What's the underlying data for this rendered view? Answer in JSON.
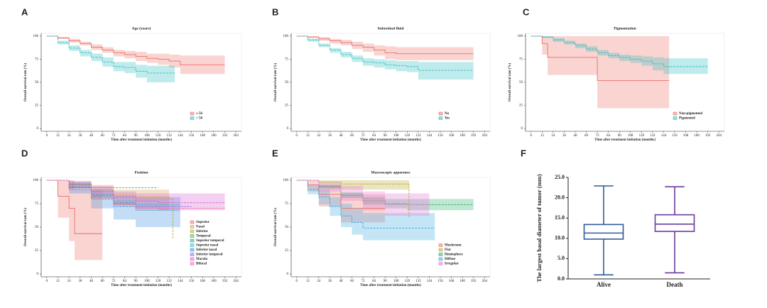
{
  "chart_data": [
    {
      "type": "km",
      "panel_label": "A",
      "title": "Age (years)",
      "xlabel": "Time after treatment initiation (months)",
      "ylabel": "Overall survival rate (%)",
      "xlim": [
        -6,
        210
      ],
      "ylim": [
        -3,
        103
      ],
      "xticks": [
        0,
        12,
        24,
        36,
        48,
        60,
        72,
        84,
        96,
        108,
        120,
        132,
        144,
        156,
        168,
        180,
        192,
        204
      ],
      "yticks": [
        0,
        25,
        50,
        75,
        100
      ],
      "legend": "lower right",
      "series": [
        {
          "name": "≤ 56",
          "color": "#ec6f68",
          "linestyle": "solid",
          "x": [
            0,
            12,
            24,
            36,
            48,
            60,
            72,
            84,
            96,
            108,
            120,
            132,
            144,
            192
          ],
          "values": [
            100,
            98,
            95,
            92,
            88,
            85,
            82,
            80,
            78,
            76,
            75,
            73,
            69,
            69
          ],
          "ci_lower": [
            100,
            97,
            93,
            90,
            85,
            82,
            78,
            76,
            73,
            71,
            69,
            66,
            59,
            59
          ],
          "ci_upper": [
            100,
            99,
            97,
            94,
            91,
            88,
            85,
            84,
            83,
            81,
            81,
            80,
            79,
            79
          ]
        },
        {
          "name": "> 56",
          "color": "#2fbcc0",
          "linestyle": "dashed",
          "x": [
            0,
            12,
            24,
            36,
            48,
            60,
            72,
            84,
            96,
            108,
            120,
            132,
            138
          ],
          "values": [
            100,
            93,
            87,
            82,
            77,
            72,
            67,
            66,
            62,
            60,
            60,
            60,
            60
          ],
          "ci_lower": [
            100,
            91,
            84,
            78,
            73,
            67,
            62,
            60,
            55,
            50,
            50,
            50,
            50
          ],
          "ci_upper": [
            100,
            95,
            90,
            85,
            81,
            77,
            72,
            72,
            69,
            68,
            68,
            68,
            68
          ]
        }
      ]
    },
    {
      "type": "km",
      "panel_label": "B",
      "title": "Subretinal fluid",
      "xlabel": "Time after treatment initiation (months)",
      "ylabel": "Overall survival rate (%)",
      "xlim": [
        -6,
        210
      ],
      "ylim": [
        -3,
        103
      ],
      "xticks": [
        0,
        12,
        24,
        36,
        48,
        60,
        72,
        84,
        96,
        108,
        120,
        132,
        144,
        156,
        168,
        180,
        192,
        204
      ],
      "yticks": [
        0,
        25,
        50,
        75,
        100
      ],
      "legend": "lower right",
      "series": [
        {
          "name": "No",
          "color": "#ec6f68",
          "linestyle": "solid",
          "x": [
            0,
            12,
            24,
            36,
            48,
            60,
            72,
            84,
            96,
            108,
            120,
            144,
            192
          ],
          "values": [
            100,
            99,
            97,
            95,
            93,
            90,
            88,
            85,
            82,
            81,
            81,
            81,
            81
          ],
          "ci_lower": [
            100,
            98,
            95,
            92,
            90,
            86,
            83,
            79,
            75,
            74,
            74,
            74,
            74
          ],
          "ci_upper": [
            100,
            100,
            99,
            97,
            96,
            94,
            92,
            90,
            89,
            88,
            88,
            88,
            88
          ]
        },
        {
          "name": "Yes",
          "color": "#2fbcc0",
          "linestyle": "dashed",
          "x": [
            0,
            12,
            24,
            36,
            48,
            60,
            72,
            84,
            96,
            108,
            120,
            132,
            192
          ],
          "values": [
            100,
            96,
            90,
            85,
            80,
            76,
            72,
            71,
            69,
            68,
            67,
            63,
            63
          ],
          "ci_lower": [
            100,
            94,
            88,
            82,
            77,
            72,
            68,
            66,
            64,
            62,
            61,
            53,
            53
          ],
          "ci_upper": [
            100,
            97,
            92,
            87,
            83,
            79,
            76,
            75,
            74,
            73,
            73,
            72,
            72
          ]
        }
      ]
    },
    {
      "type": "km",
      "panel_label": "C",
      "title": "Pigmentation",
      "xlabel": "Time after treatment initiation (months)",
      "ylabel": "Overall survival rate (%)",
      "xlim": [
        -6,
        210
      ],
      "ylim": [
        -3,
        103
      ],
      "xticks": [
        0,
        12,
        24,
        36,
        48,
        60,
        72,
        84,
        96,
        108,
        120,
        132,
        144,
        156,
        168,
        180,
        192,
        204
      ],
      "yticks": [
        0,
        25,
        50,
        75,
        100
      ],
      "legend": "lower right",
      "series": [
        {
          "name": "Non-pigmented",
          "color": "#ec6f68",
          "linestyle": "solid",
          "x": [
            0,
            6,
            12,
            18,
            72,
            150
          ],
          "values": [
            100,
            100,
            92,
            77,
            52,
            52
          ],
          "ci_lower": [
            100,
            100,
            80,
            58,
            22,
            22
          ],
          "ci_upper": [
            100,
            100,
            100,
            100,
            100,
            100
          ]
        },
        {
          "name": "Pigmented",
          "color": "#2fbcc0",
          "linestyle": "dashed",
          "x": [
            0,
            12,
            24,
            36,
            48,
            60,
            72,
            84,
            96,
            108,
            120,
            132,
            144,
            192
          ],
          "values": [
            100,
            99,
            96,
            93,
            90,
            86,
            82,
            79,
            77,
            75,
            73,
            70,
            67,
            67
          ],
          "ci_lower": [
            100,
            98,
            94,
            91,
            87,
            83,
            79,
            76,
            73,
            71,
            68,
            63,
            59,
            59
          ],
          "ci_upper": [
            100,
            100,
            98,
            95,
            92,
            89,
            85,
            82,
            80,
            79,
            78,
            77,
            76,
            76
          ]
        }
      ]
    },
    {
      "type": "km",
      "panel_label": "D",
      "title": "Position",
      "xlabel": "Time after treatment initiation (months)",
      "ylabel": "Overall survival rate (%)",
      "xlim": [
        -6,
        210
      ],
      "ylim": [
        -3,
        103
      ],
      "xticks": [
        0,
        12,
        24,
        36,
        48,
        60,
        72,
        84,
        96,
        108,
        120,
        132,
        144,
        156,
        168,
        180,
        192,
        204
      ],
      "yticks": [
        0,
        25,
        50,
        75,
        100
      ],
      "legend": "lower right",
      "series": [
        {
          "name": "Superior",
          "color": "#ec6f68",
          "linestyle": "solid",
          "x": [
            0,
            12,
            24,
            30,
            60
          ],
          "values": [
            100,
            83,
            70,
            43,
            43
          ],
          "ci_lower": [
            100,
            60,
            35,
            15,
            15
          ],
          "ci_upper": [
            100,
            100,
            100,
            90,
            90
          ]
        },
        {
          "name": "Nasal",
          "color": "#dc9a5a",
          "linestyle": "dashed",
          "x": [
            0,
            24,
            48,
            72,
            96,
            120,
            132
          ],
          "values": [
            100,
            95,
            88,
            82,
            80,
            80,
            80
          ],
          "ci_lower": [
            100,
            90,
            80,
            72,
            68,
            68,
            68
          ],
          "ci_upper": [
            100,
            99,
            95,
            90,
            90,
            90,
            90
          ]
        },
        {
          "name": "Inferior",
          "color": "#b8a830",
          "linestyle": "dashed",
          "x": [
            0,
            24,
            48,
            72,
            96,
            132,
            136
          ],
          "values": [
            100,
            96,
            90,
            85,
            82,
            80,
            38
          ]
        },
        {
          "name": "Temporal",
          "color": "#4caf50",
          "linestyle": "dashed",
          "x": [
            0,
            24,
            48,
            72,
            96,
            120
          ],
          "values": [
            100,
            95,
            92,
            92,
            92,
            92
          ]
        },
        {
          "name": "Superior temporal",
          "color": "#2aa88a",
          "linestyle": "dashed",
          "x": [
            0,
            24,
            48,
            72,
            96,
            144
          ],
          "values": [
            100,
            92,
            82,
            76,
            72,
            72
          ]
        },
        {
          "name": "Superior nasal",
          "color": "#2fbcc8",
          "linestyle": "dashed",
          "x": [
            0,
            24,
            48,
            72,
            96,
            144
          ],
          "values": [
            100,
            93,
            85,
            78,
            74,
            74
          ]
        },
        {
          "name": "Inferior nasal",
          "color": "#3d8fe0",
          "linestyle": "dashed",
          "x": [
            0,
            24,
            48,
            72,
            96,
            144
          ],
          "values": [
            100,
            92,
            80,
            72,
            68,
            68
          ],
          "ci_lower": [
            100,
            86,
            70,
            58,
            50,
            50
          ],
          "ci_upper": [
            100,
            98,
            90,
            84,
            82,
            82
          ]
        },
        {
          "name": "Inferior temporal",
          "color": "#8a6fe0",
          "linestyle": "dashed",
          "x": [
            0,
            24,
            48,
            72,
            96,
            156
          ],
          "values": [
            100,
            93,
            84,
            75,
            72,
            72
          ]
        },
        {
          "name": "Macula",
          "color": "#d860d0",
          "linestyle": "dashed",
          "x": [
            0,
            24,
            48,
            72,
            96,
            120,
            192
          ],
          "values": [
            100,
            96,
            88,
            82,
            78,
            76,
            76
          ],
          "ci_lower": [
            100,
            92,
            82,
            74,
            70,
            68,
            68
          ],
          "ci_upper": [
            100,
            99,
            94,
            88,
            86,
            86,
            86
          ]
        },
        {
          "name": "Bifocal",
          "color": "#f06aa8",
          "linestyle": "dashed",
          "x": [
            0,
            24,
            48,
            72,
            96,
            192
          ],
          "values": [
            100,
            90,
            80,
            74,
            70,
            70
          ]
        }
      ]
    },
    {
      "type": "km",
      "panel_label": "E",
      "title": "Macroscopic apperence",
      "xlabel": "Time after treatment initiation (months)",
      "ylabel": "Overall survival rate (%)",
      "xlim": [
        -6,
        210
      ],
      "ylim": [
        -3,
        103
      ],
      "xticks": [
        0,
        12,
        24,
        36,
        48,
        60,
        72,
        84,
        96,
        108,
        120,
        132,
        144,
        156,
        168,
        180,
        192,
        204
      ],
      "yticks": [
        0,
        25,
        50,
        75,
        100
      ],
      "legend": "lower right",
      "series": [
        {
          "name": "Mushroom",
          "color": "#ec6f68",
          "linestyle": "solid",
          "x": [
            0,
            12,
            24,
            48,
            72,
            96
          ],
          "values": [
            100,
            95,
            85,
            70,
            70,
            70
          ],
          "ci_lower": [
            100,
            88,
            72,
            55,
            55,
            55
          ],
          "ci_upper": [
            100,
            100,
            95,
            85,
            85,
            85
          ]
        },
        {
          "name": "Flat",
          "color": "#b8a830",
          "linestyle": "dashed",
          "x": [
            0,
            24,
            48,
            72,
            96,
            120,
            122
          ],
          "values": [
            100,
            98,
            96,
            96,
            96,
            96,
            60
          ],
          "ci_lower": [
            100,
            95,
            90,
            90,
            90,
            90,
            55
          ],
          "ci_upper": [
            100,
            100,
            100,
            100,
            100,
            100,
            100
          ]
        },
        {
          "name": "Hemisphere",
          "color": "#2ab06a",
          "linestyle": "dashed",
          "x": [
            0,
            24,
            48,
            72,
            96,
            120,
            192
          ],
          "values": [
            100,
            93,
            84,
            78,
            75,
            74,
            74
          ],
          "ci_lower": [
            100,
            91,
            81,
            74,
            70,
            68,
            68
          ],
          "ci_upper": [
            100,
            95,
            87,
            82,
            80,
            80,
            80
          ]
        },
        {
          "name": "Diffuse",
          "color": "#3aa8e0",
          "linestyle": "dashed",
          "x": [
            0,
            12,
            24,
            36,
            48,
            60,
            72,
            150
          ],
          "values": [
            100,
            90,
            82,
            72,
            62,
            55,
            49,
            49
          ],
          "ci_lower": [
            100,
            85,
            74,
            62,
            50,
            42,
            36,
            36
          ],
          "ci_upper": [
            100,
            95,
            90,
            82,
            75,
            70,
            65,
            65
          ]
        },
        {
          "name": "Irregular",
          "color": "#e870d8",
          "linestyle": "dashed",
          "x": [
            0,
            24,
            48,
            72,
            96,
            144
          ],
          "values": [
            100,
            94,
            86,
            78,
            74,
            74
          ],
          "ci_lower": [
            100,
            88,
            78,
            68,
            62,
            62
          ],
          "ci_upper": [
            100,
            98,
            94,
            88,
            86,
            86
          ]
        }
      ]
    },
    {
      "type": "box",
      "panel_label": "F",
      "ylabel": "The largest basal diameter of tumor (mm)",
      "ylim": [
        0,
        25
      ],
      "yticks": [
        {
          "value": 0,
          "label": "0.0"
        },
        {
          "value": 5,
          "label": "5.0"
        },
        {
          "value": 10,
          "label": "10.0"
        },
        {
          "value": 15,
          "label": "15.0"
        },
        {
          "value": 20,
          "label": "20.0"
        },
        {
          "value": 25,
          "label": "25.0"
        }
      ],
      "categories": [
        "Alive",
        "Death"
      ],
      "colors": [
        "#2d5b9b",
        "#6b3a9e"
      ],
      "min": [
        1.0,
        1.5
      ],
      "q1": [
        9.8,
        11.7
      ],
      "median": [
        11.3,
        13.5
      ],
      "q3": [
        13.4,
        15.8
      ],
      "max": [
        22.9,
        22.7
      ]
    }
  ]
}
